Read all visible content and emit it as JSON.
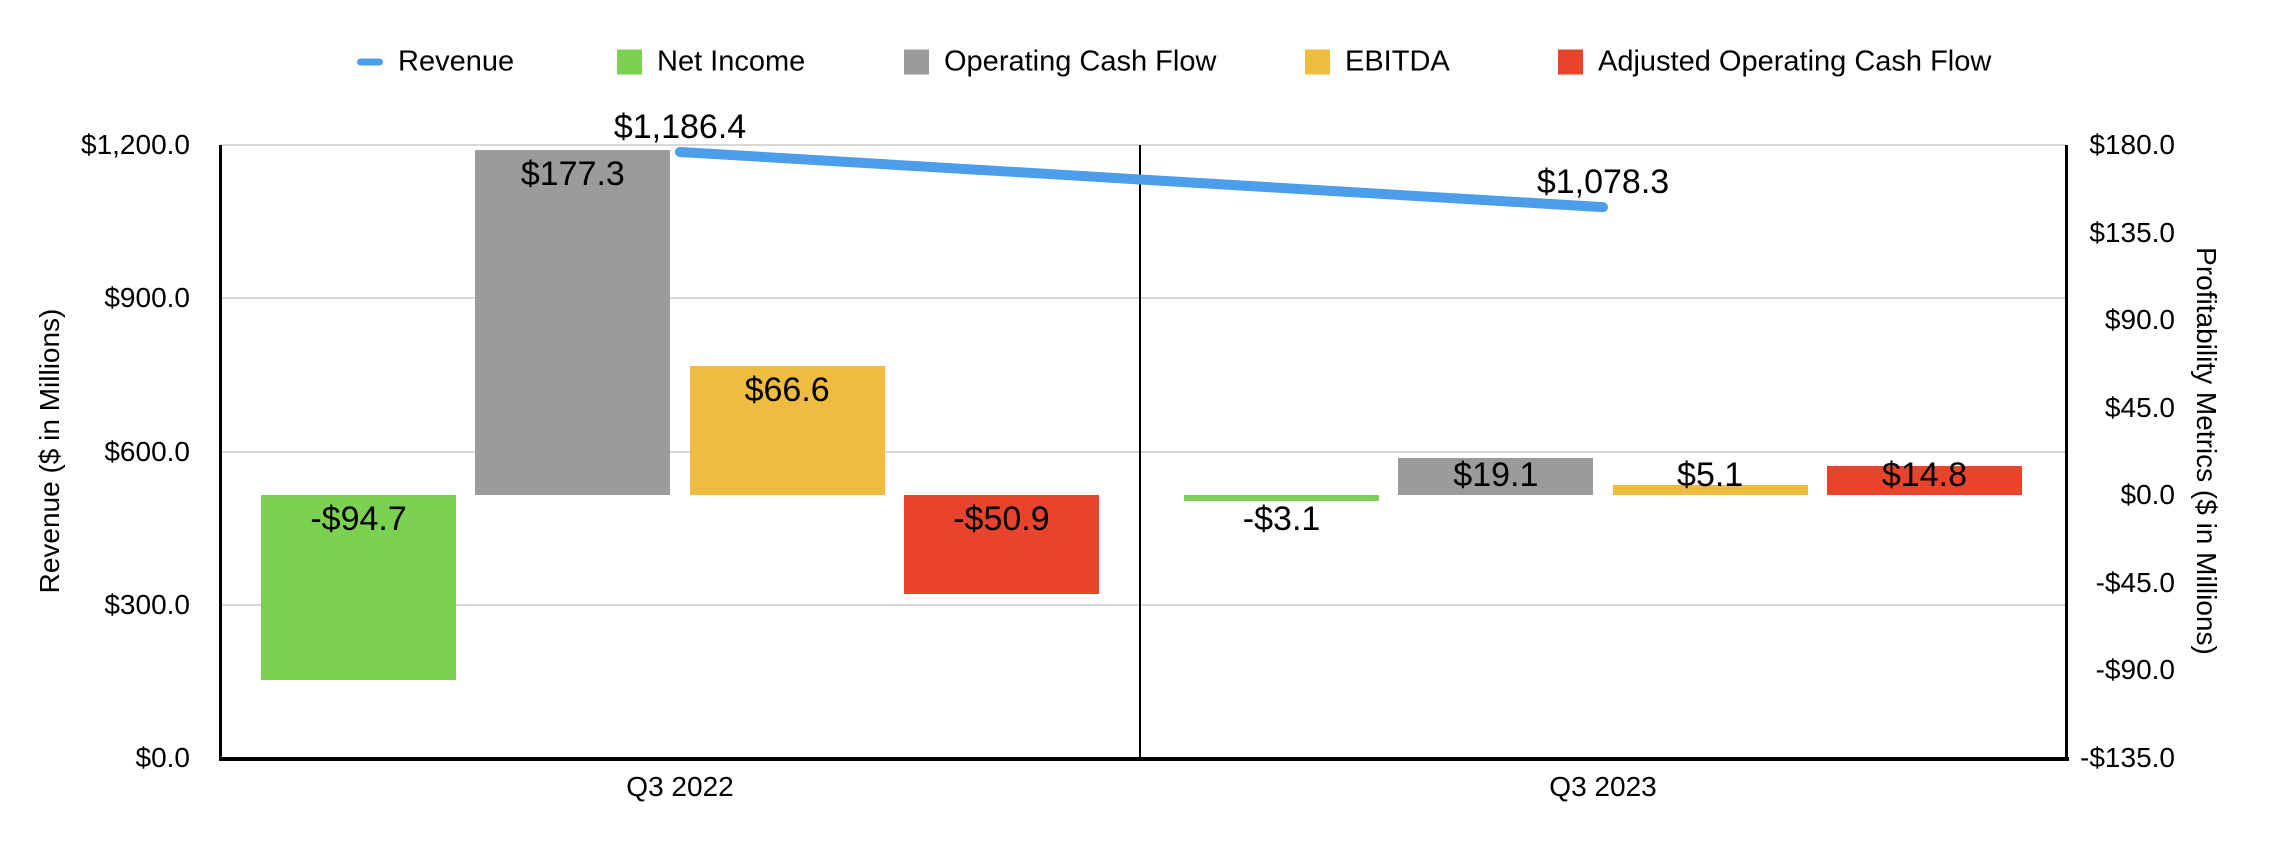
{
  "chart_data": {
    "type": "combo-line-and-grouped-bar",
    "title": "",
    "categories": [
      "Q3 2022",
      "Q3 2023"
    ],
    "series": [
      {
        "name": "Revenue",
        "type": "line",
        "axis": "left",
        "color": "#4C9EEB",
        "values": [
          1186.4,
          1078.3
        ],
        "labels": [
          "$1,186.4",
          "$1,078.3"
        ]
      },
      {
        "name": "Net Income",
        "type": "bar",
        "axis": "right",
        "color": "#7CD152",
        "values": [
          -94.7,
          -3.1
        ],
        "labels": [
          "-$94.7",
          "-$3.1"
        ]
      },
      {
        "name": "Operating Cash Flow",
        "type": "bar",
        "axis": "right",
        "color": "#9B9B9B",
        "values": [
          177.3,
          19.1
        ],
        "labels": [
          "$177.3",
          "$19.1"
        ]
      },
      {
        "name": "EBITDA",
        "type": "bar",
        "axis": "right",
        "color": "#EDBC40",
        "values": [
          66.6,
          5.1
        ],
        "labels": [
          "$66.6",
          "$5.1"
        ]
      },
      {
        "name": "Adjusted Operating Cash Flow",
        "type": "bar",
        "axis": "right",
        "color": "#E8432C",
        "values": [
          -50.9,
          14.8
        ],
        "labels": [
          "-$50.9",
          "$14.8"
        ]
      }
    ],
    "axes": {
      "left": {
        "title": "Revenue ($ in Millions)",
        "min": 0,
        "max": 1200,
        "tick_values": [
          0,
          300,
          600,
          900,
          1200
        ],
        "tick_labels": [
          "$0.0",
          "$300.0",
          "$600.0",
          "$900.0",
          "$1,200.0"
        ]
      },
      "right": {
        "title": "Profitability Metrics ($ in Millions)",
        "min": -135,
        "max": 180,
        "tick_values": [
          180,
          135,
          90,
          45,
          0,
          -45,
          -90,
          -135
        ],
        "tick_labels": [
          "$180.0",
          "$135.0",
          "$90.0",
          "$45.0",
          "$0.0",
          "-$45.0",
          "-$90.0",
          "-$135.0"
        ]
      }
    },
    "gridlines": {
      "values": [
        300,
        600,
        900,
        1200
      ],
      "color": "#d8d8d8"
    },
    "legend_position": "top",
    "legend": [
      {
        "label": "Revenue",
        "marker": "line",
        "color": "#4C9EEB",
        "x": 357
      },
      {
        "label": "Net Income",
        "marker": "square",
        "color": "#7CD152",
        "x": 617
      },
      {
        "label": "Operating Cash Flow",
        "marker": "square",
        "color": "#9B9B9B",
        "x": 904
      },
      {
        "label": "EBITDA",
        "marker": "square",
        "color": "#EDBC40",
        "x": 1305
      },
      {
        "label": "Adjusted Operating Cash Flow",
        "marker": "square",
        "color": "#E8432C",
        "x": 1558
      }
    ],
    "colors": {
      "axis_line": "#000000",
      "text": "#000000",
      "background": "#ffffff"
    }
  }
}
